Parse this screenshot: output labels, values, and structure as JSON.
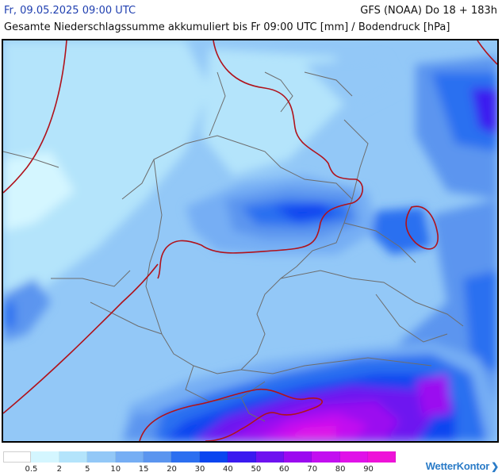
{
  "header": {
    "date_time": "Fr, 09.05.2025 09:00 UTC",
    "model_run": "GFS (NOAA) Do 18 + 183h",
    "subtitle": "Gesamte Niederschlagssumme akkumuliert bis Fr 09:00 UTC [mm] / Bodendruck [hPa]"
  },
  "legend": {
    "unit": "mm",
    "colors": [
      "#ffffff",
      "#d4f6ff",
      "#b4e4fb",
      "#93c8f7",
      "#76aef4",
      "#5b95ef",
      "#2c6ff0",
      "#0a45f0",
      "#3a1af0",
      "#6e12f0",
      "#9b0af0",
      "#c20ff0",
      "#e012e8",
      "#ee12d8"
    ],
    "labels": [
      "0.5",
      "2",
      "5",
      "10",
      "15",
      "20",
      "30",
      "40",
      "50",
      "60",
      "70",
      "80",
      "90"
    ]
  },
  "brand": {
    "name": "WetterKontor",
    "icon": "wetterkontor-logo-icon"
  }
}
